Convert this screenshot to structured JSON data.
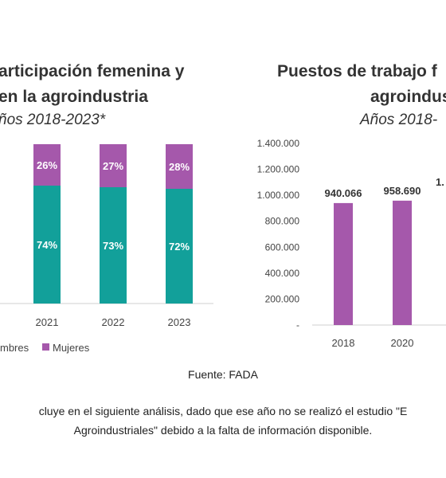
{
  "left": {
    "title_line1": "articipación femenina y",
    "title_line2": "en la agroindustria",
    "subtitle": "ños 2018-2023*"
  },
  "right": {
    "title_line1": "Puestos de trabajo f",
    "title_line2": "agroindus",
    "subtitle": "Años 2018-"
  },
  "colors": {
    "teal": "#12a09a",
    "purple": "#a558ab"
  },
  "source": "Fuente: FADA",
  "note": {
    "line1": "cluye en el siguiente análisis, dado que ese año no se realizó el estudio \"E",
    "line2": "Agroindustriales\" debido a la falta de información disponible."
  },
  "chart_data": [
    {
      "type": "bar",
      "stacked": true,
      "categories": [
        "2021",
        "2022",
        "2023"
      ],
      "series": [
        {
          "name": "mbres",
          "values": [
            74,
            73,
            72
          ],
          "labels": [
            "74%",
            "73%",
            "72%"
          ],
          "color": "#12a09a"
        },
        {
          "name": "Mujeres",
          "values": [
            26,
            27,
            28
          ],
          "labels": [
            "26%",
            "27%",
            "28%"
          ],
          "color": "#a558ab"
        }
      ],
      "ylim": [
        0,
        100
      ],
      "grid": false,
      "legend": "bottom"
    },
    {
      "type": "bar",
      "categories": [
        "2018",
        "2020"
      ],
      "values": [
        940066,
        958690
      ],
      "data_labels": [
        "940.066",
        "958.690"
      ],
      "partial_label": "1.",
      "yticks": [
        "1.400.000",
        "1.200.000",
        "1.000.000",
        "800.000",
        "600.000",
        "400.000",
        "200.000",
        "-"
      ],
      "ylim": [
        0,
        1400000
      ],
      "color": "#a558ab",
      "grid": false
    }
  ]
}
